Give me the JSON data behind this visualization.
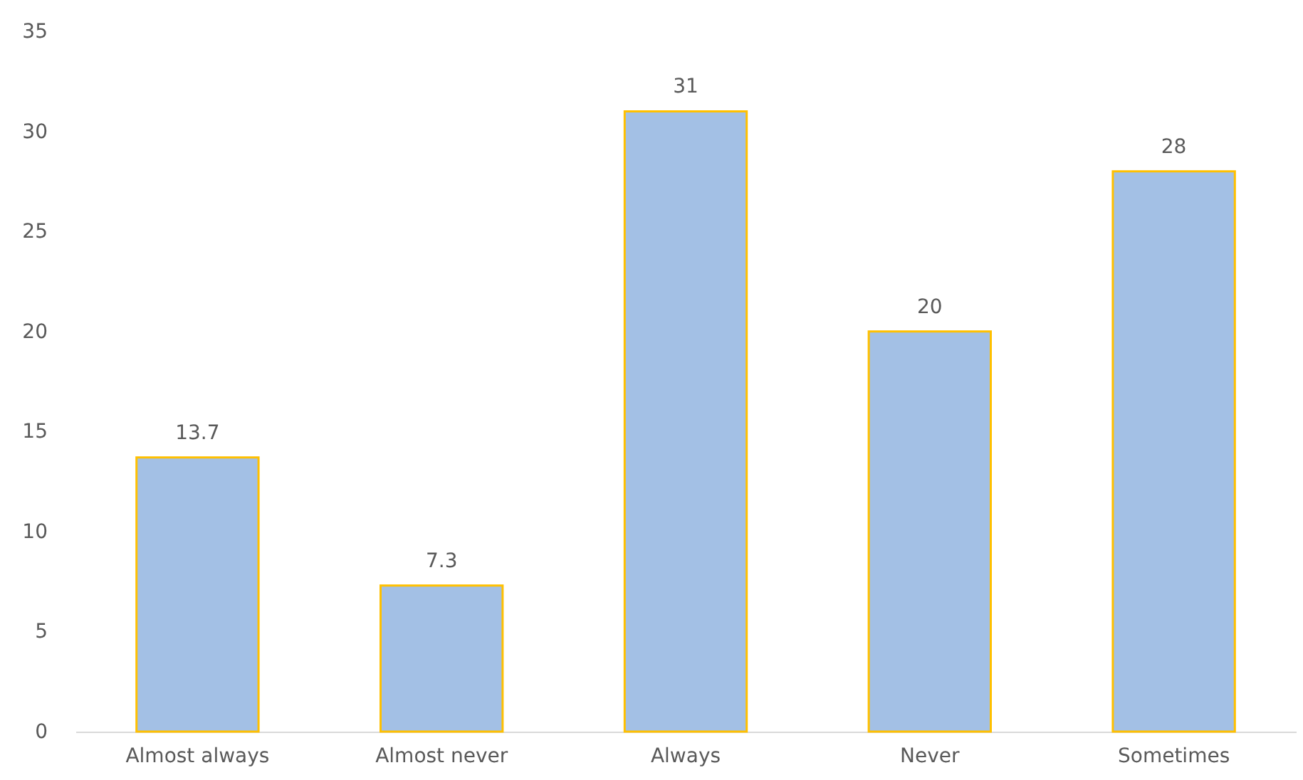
{
  "chart_data": {
    "type": "bar",
    "categories": [
      "Almost always",
      "Almost never",
      "Always",
      "Never",
      "Sometimes"
    ],
    "values": [
      13.7,
      7.3,
      31,
      20,
      28
    ],
    "color": "#a3c0e5",
    "ylim": [
      0,
      35
    ],
    "yticks": [
      0,
      5,
      10,
      15,
      20,
      25,
      30,
      35
    ],
    "grid": false,
    "data_labels": true
  }
}
